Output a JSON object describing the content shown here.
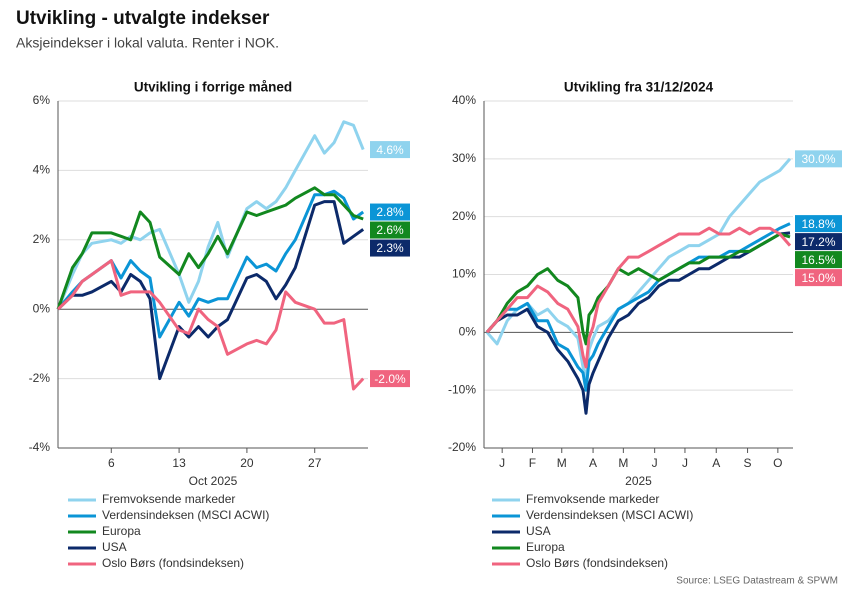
{
  "header": {
    "title": "Utvikling - utvalgte indekser",
    "subtitle": "Aksjeindekser i lokal valuta. Renter i NOK."
  },
  "source": "Source: LSEG Datastream & SPWM",
  "chart_data": [
    {
      "type": "line",
      "title": "Utvikling i forrige måned",
      "xlabel": "Oct 2025",
      "grid": true,
      "x": [
        0.5,
        2,
        3,
        4,
        6,
        7,
        8,
        9,
        10,
        11,
        13,
        14,
        15,
        16,
        17,
        18,
        20,
        21,
        22,
        23,
        24,
        25,
        27,
        28,
        29,
        30,
        31,
        32
      ],
      "xlim": [
        0.5,
        32.5
      ],
      "xticks": [
        6,
        13,
        20,
        27
      ],
      "ylim": [
        -4,
        6
      ],
      "yticks": [
        {
          "value": -4,
          "label": "-4%"
        },
        {
          "value": -2,
          "label": "-2%"
        },
        {
          "value": 0,
          "label": "0%"
        },
        {
          "value": 2,
          "label": "2%"
        },
        {
          "value": 4,
          "label": "4%"
        },
        {
          "value": 6,
          "label": "6%"
        }
      ],
      "series": [
        {
          "name": "Fremvoksende markeder",
          "color": "#8fd3ee",
          "values": [
            0,
            1.0,
            1.6,
            1.9,
            2.0,
            1.9,
            2.1,
            2.0,
            2.2,
            2.3,
            1.0,
            0.2,
            0.8,
            1.8,
            2.5,
            1.5,
            2.9,
            3.1,
            2.9,
            3.1,
            3.5,
            4.0,
            5.0,
            4.5,
            4.8,
            5.4,
            5.3,
            4.6
          ],
          "value_labels": [
            null,
            null,
            null,
            null,
            null,
            null,
            null,
            null,
            null,
            null,
            null,
            null,
            null,
            null,
            null,
            null,
            null,
            null,
            null,
            null,
            null,
            null,
            null,
            null,
            null,
            null,
            null,
            "4.6%"
          ]
        },
        {
          "name": "Verdensindeksen (MSCI ACWI)",
          "color": "#0b95d6",
          "values": [
            0,
            0.5,
            0.8,
            1.0,
            1.4,
            0.9,
            1.4,
            1.1,
            0.9,
            -0.8,
            0.2,
            -0.2,
            0.3,
            0.2,
            0.3,
            0.3,
            1.5,
            1.2,
            1.3,
            1.1,
            1.6,
            2.0,
            3.3,
            3.3,
            3.4,
            3.2,
            2.6,
            2.8
          ],
          "value_labels": [
            null,
            null,
            null,
            null,
            null,
            null,
            null,
            null,
            null,
            null,
            null,
            null,
            null,
            null,
            null,
            null,
            null,
            null,
            null,
            null,
            null,
            null,
            null,
            null,
            null,
            null,
            null,
            "2.8%"
          ]
        },
        {
          "name": "Europa",
          "color": "#12881f",
          "values": [
            0,
            1.2,
            1.6,
            2.2,
            2.2,
            2.1,
            2.0,
            2.8,
            2.5,
            1.5,
            1.0,
            1.6,
            1.2,
            1.6,
            2.1,
            1.6,
            2.8,
            2.7,
            2.8,
            2.9,
            3.0,
            3.2,
            3.5,
            3.3,
            3.3,
            3.0,
            2.7,
            2.6
          ],
          "value_labels": [
            null,
            null,
            null,
            null,
            null,
            null,
            null,
            null,
            null,
            null,
            null,
            null,
            null,
            null,
            null,
            null,
            null,
            null,
            null,
            null,
            null,
            null,
            null,
            null,
            null,
            null,
            null,
            "2.6%"
          ]
        },
        {
          "name": "USA",
          "color": "#0c2a6a",
          "values": [
            0,
            0.4,
            0.4,
            0.5,
            0.8,
            0.5,
            1.0,
            0.8,
            0.3,
            -2.0,
            -0.5,
            -0.8,
            -0.5,
            -0.8,
            -0.5,
            -0.3,
            0.9,
            1.0,
            0.8,
            0.3,
            0.7,
            1.2,
            3.0,
            3.1,
            3.1,
            1.9,
            2.1,
            2.3
          ],
          "value_labels": [
            null,
            null,
            null,
            null,
            null,
            null,
            null,
            null,
            null,
            null,
            null,
            null,
            null,
            null,
            null,
            null,
            null,
            null,
            null,
            null,
            null,
            null,
            null,
            null,
            null,
            null,
            null,
            "2.3%"
          ]
        },
        {
          "name": "Oslo Børs (fondsindeksen)",
          "color": "#f0647f",
          "values": [
            0,
            0.4,
            0.8,
            1.0,
            1.4,
            0.4,
            0.5,
            0.5,
            0.5,
            0.2,
            -0.6,
            -0.7,
            0.0,
            -0.3,
            -0.5,
            -1.3,
            -1.0,
            -0.9,
            -1.0,
            -0.6,
            0.5,
            0.2,
            0.0,
            -0.4,
            -0.4,
            -0.3,
            -2.3,
            -2.0
          ],
          "value_labels": [
            null,
            null,
            null,
            null,
            null,
            null,
            null,
            null,
            null,
            null,
            null,
            null,
            null,
            null,
            null,
            null,
            null,
            null,
            null,
            null,
            null,
            null,
            null,
            null,
            null,
            null,
            null,
            "-2.0%"
          ]
        }
      ]
    },
    {
      "type": "line",
      "title": "Utvikling fra 31/12/2024",
      "xlabel": "2025",
      "grid": true,
      "x": [
        0,
        10,
        20,
        30,
        40,
        50,
        60,
        70,
        80,
        90,
        95,
        98,
        101,
        105,
        110,
        120,
        130,
        140,
        150,
        160,
        170,
        180,
        190,
        200,
        210,
        220,
        230,
        240,
        250,
        260,
        270,
        280,
        290,
        300
      ],
      "xlim": [
        -3,
        303
      ],
      "xticks": [
        {
          "value": 15,
          "label": "J"
        },
        {
          "value": 45,
          "label": "F"
        },
        {
          "value": 74,
          "label": "M"
        },
        {
          "value": 105,
          "label": "A"
        },
        {
          "value": 135,
          "label": "M"
        },
        {
          "value": 166,
          "label": "J"
        },
        {
          "value": 196,
          "label": "J"
        },
        {
          "value": 227,
          "label": "A"
        },
        {
          "value": 258,
          "label": "S"
        },
        {
          "value": 288,
          "label": "O"
        }
      ],
      "ylim": [
        -20,
        40
      ],
      "yticks": [
        {
          "value": -20,
          "label": "-20%"
        },
        {
          "value": -10,
          "label": "-10%"
        },
        {
          "value": 0,
          "label": "0%"
        },
        {
          "value": 10,
          "label": "10%"
        },
        {
          "value": 20,
          "label": "20%"
        },
        {
          "value": 30,
          "label": "30%"
        },
        {
          "value": 40,
          "label": "40%"
        }
      ],
      "series": [
        {
          "name": "Fremvoksende markeder",
          "color": "#8fd3ee",
          "values": [
            0,
            -2,
            2,
            4,
            5,
            3,
            4,
            2,
            1,
            -1,
            -6,
            -8,
            -3,
            -1,
            1,
            2,
            4,
            5,
            7,
            9,
            11,
            13,
            14,
            15,
            15,
            16,
            17,
            20,
            22,
            24,
            26,
            27,
            28,
            30.0
          ],
          "value_labels": [
            null,
            null,
            null,
            null,
            null,
            null,
            null,
            null,
            null,
            null,
            null,
            null,
            null,
            null,
            null,
            null,
            null,
            null,
            null,
            null,
            null,
            null,
            null,
            null,
            null,
            null,
            null,
            null,
            null,
            null,
            null,
            null,
            null,
            "30.0%"
          ]
        },
        {
          "name": "Verdensindeksen (MSCI ACWI)",
          "color": "#0b95d6",
          "values": [
            0,
            2,
            4,
            4,
            5,
            2,
            2,
            -2,
            -3,
            -6,
            -7,
            -10,
            -5,
            -4,
            -2,
            1,
            4,
            5,
            6,
            7,
            9,
            10,
            11,
            12,
            13,
            13,
            13,
            14,
            14,
            15,
            16,
            17,
            18,
            18.8
          ],
          "value_labels": [
            null,
            null,
            null,
            null,
            null,
            null,
            null,
            null,
            null,
            null,
            null,
            null,
            null,
            null,
            null,
            null,
            null,
            null,
            null,
            null,
            null,
            null,
            null,
            null,
            null,
            null,
            null,
            null,
            null,
            null,
            null,
            null,
            null,
            "18.8%"
          ]
        },
        {
          "name": "USA",
          "color": "#0c2a6a",
          "values": [
            0,
            2,
            3,
            3,
            4,
            1,
            0,
            -3,
            -5,
            -8,
            -10,
            -14,
            -9,
            -7,
            -5,
            -1,
            2,
            3,
            5,
            6,
            8,
            9,
            9,
            10,
            11,
            11,
            12,
            13,
            13,
            14,
            15,
            16,
            17,
            17.2
          ],
          "value_labels": [
            null,
            null,
            null,
            null,
            null,
            null,
            null,
            null,
            null,
            null,
            null,
            null,
            null,
            null,
            null,
            null,
            null,
            null,
            null,
            null,
            null,
            null,
            null,
            null,
            null,
            null,
            null,
            null,
            null,
            null,
            null,
            null,
            null,
            "17.2%"
          ]
        },
        {
          "name": "Europa",
          "color": "#12881f",
          "values": [
            0,
            2,
            5,
            7,
            8,
            10,
            11,
            9,
            8,
            6,
            0,
            -2,
            3,
            4,
            6,
            8,
            11,
            10,
            11,
            10,
            9,
            10,
            11,
            12,
            12,
            13,
            13,
            13,
            14,
            14,
            15,
            16,
            17,
            16.5
          ],
          "value_labels": [
            null,
            null,
            null,
            null,
            null,
            null,
            null,
            null,
            null,
            null,
            null,
            null,
            null,
            null,
            null,
            null,
            null,
            null,
            null,
            null,
            null,
            null,
            null,
            null,
            null,
            null,
            null,
            null,
            null,
            null,
            null,
            null,
            null,
            "16.5%"
          ]
        },
        {
          "name": "Oslo Børs (fondsindeksen)",
          "color": "#f0647f",
          "values": [
            0,
            2,
            4,
            6,
            6,
            8,
            7,
            5,
            4,
            1,
            -4,
            -6,
            -1,
            1,
            5,
            8,
            11,
            13,
            13,
            14,
            15,
            16,
            17,
            17,
            17,
            18,
            17,
            17,
            18,
            17,
            18,
            18,
            17,
            15.0
          ],
          "value_labels": [
            null,
            null,
            null,
            null,
            null,
            null,
            null,
            null,
            null,
            null,
            null,
            null,
            null,
            null,
            null,
            null,
            null,
            null,
            null,
            null,
            null,
            null,
            null,
            null,
            null,
            null,
            null,
            null,
            null,
            null,
            null,
            null,
            null,
            "15.0%"
          ]
        }
      ]
    }
  ]
}
